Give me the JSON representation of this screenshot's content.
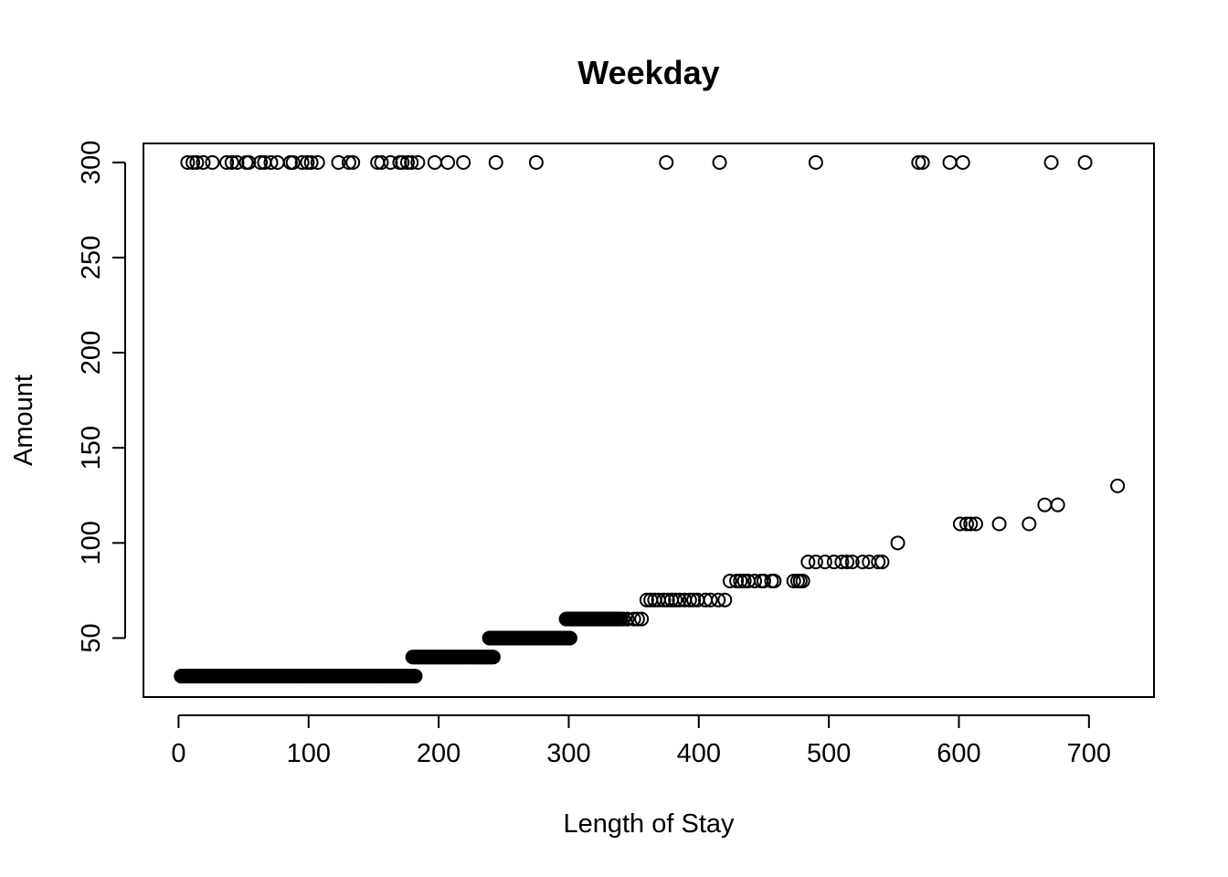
{
  "chart_data": {
    "type": "scatter",
    "title": "Weekday",
    "xlabel": "Length of Stay",
    "ylabel": "Amount",
    "xlim": [
      -27,
      750
    ],
    "ylim": [
      19,
      310
    ],
    "xticks": [
      0,
      100,
      200,
      300,
      400,
      500,
      600,
      700
    ],
    "yticks": [
      50,
      100,
      150,
      200,
      250,
      300
    ],
    "grid": false,
    "legend": "none",
    "marker": "open-circle",
    "color": "#000000",
    "bands": [
      {
        "y": 30,
        "x_from": 2,
        "x_to": 182,
        "step": 1
      },
      {
        "y": 40,
        "x_from": 180,
        "x_to": 242,
        "step": 1
      },
      {
        "y": 50,
        "x_from": 239,
        "x_to": 301,
        "step": 1
      },
      {
        "y": 60,
        "x_from": 298,
        "x_to": 340,
        "step": 1
      }
    ],
    "points": [
      [
        7,
        300
      ],
      [
        11,
        300
      ],
      [
        14,
        300
      ],
      [
        19,
        300
      ],
      [
        26,
        300
      ],
      [
        37,
        300
      ],
      [
        41,
        300
      ],
      [
        45,
        300
      ],
      [
        52,
        300
      ],
      [
        54,
        300
      ],
      [
        63,
        300
      ],
      [
        66,
        300
      ],
      [
        71,
        300
      ],
      [
        76,
        300
      ],
      [
        86,
        300
      ],
      [
        88,
        300
      ],
      [
        95,
        300
      ],
      [
        99,
        300
      ],
      [
        102,
        300
      ],
      [
        107,
        300
      ],
      [
        123,
        300
      ],
      [
        131,
        300
      ],
      [
        134,
        300
      ],
      [
        153,
        300
      ],
      [
        156,
        300
      ],
      [
        163,
        300
      ],
      [
        170,
        300
      ],
      [
        172,
        300
      ],
      [
        176,
        300
      ],
      [
        179,
        300
      ],
      [
        184,
        300
      ],
      [
        197,
        300
      ],
      [
        207,
        300
      ],
      [
        219,
        300
      ],
      [
        244,
        300
      ],
      [
        275,
        300
      ],
      [
        375,
        300
      ],
      [
        416,
        300
      ],
      [
        490,
        300
      ],
      [
        569,
        300
      ],
      [
        572,
        300
      ],
      [
        593,
        300
      ],
      [
        603,
        300
      ],
      [
        671,
        300
      ],
      [
        697,
        300
      ],
      [
        342,
        60
      ],
      [
        345,
        60
      ],
      [
        350,
        60
      ],
      [
        353,
        60
      ],
      [
        356,
        60
      ],
      [
        360,
        70
      ],
      [
        363,
        70
      ],
      [
        366,
        70
      ],
      [
        369,
        70
      ],
      [
        373,
        70
      ],
      [
        376,
        70
      ],
      [
        379,
        70
      ],
      [
        382,
        70
      ],
      [
        385,
        70
      ],
      [
        389,
        70
      ],
      [
        393,
        70
      ],
      [
        396,
        70
      ],
      [
        399,
        70
      ],
      [
        405,
        70
      ],
      [
        409,
        70
      ],
      [
        415,
        70
      ],
      [
        420,
        70
      ],
      [
        424,
        80
      ],
      [
        429,
        80
      ],
      [
        432,
        80
      ],
      [
        435,
        80
      ],
      [
        438,
        80
      ],
      [
        443,
        80
      ],
      [
        448,
        80
      ],
      [
        450,
        80
      ],
      [
        456,
        80
      ],
      [
        458,
        80
      ],
      [
        473,
        80
      ],
      [
        476,
        80
      ],
      [
        478,
        80
      ],
      [
        480,
        80
      ],
      [
        484,
        90
      ],
      [
        490,
        90
      ],
      [
        497,
        90
      ],
      [
        504,
        90
      ],
      [
        510,
        90
      ],
      [
        514,
        90
      ],
      [
        518,
        90
      ],
      [
        526,
        90
      ],
      [
        531,
        90
      ],
      [
        538,
        90
      ],
      [
        541,
        90
      ],
      [
        553,
        100
      ],
      [
        601,
        110
      ],
      [
        606,
        110
      ],
      [
        609,
        110
      ],
      [
        613,
        110
      ],
      [
        631,
        110
      ],
      [
        654,
        110
      ],
      [
        666,
        120
      ],
      [
        676,
        120
      ],
      [
        722,
        130
      ]
    ]
  }
}
